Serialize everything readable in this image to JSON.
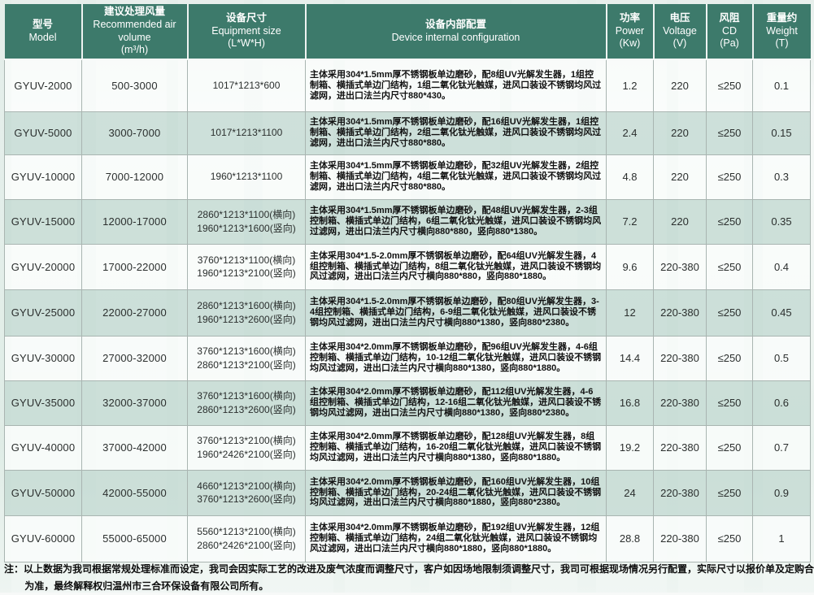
{
  "table": {
    "columns": [
      {
        "zh": "型号",
        "en": "Model",
        "unit": ""
      },
      {
        "zh": "建议处理风量",
        "en": "Recommended air volume",
        "unit": "(m³/h)"
      },
      {
        "zh": "设备尺寸",
        "en": "Equipment size",
        "unit": "(L*W*H)"
      },
      {
        "zh": "设备内部配置",
        "en": "Device internal configuration",
        "unit": ""
      },
      {
        "zh": "功率",
        "en": "Power",
        "unit": "(Kw)"
      },
      {
        "zh": "电压",
        "en": "Voltage",
        "unit": "(V)"
      },
      {
        "zh": "风阻",
        "en": "CD",
        "unit": "(Pa)"
      },
      {
        "zh": "重量约",
        "en": "Weight",
        "unit": "(T)"
      }
    ],
    "rows": [
      {
        "model": "GYUV-2000",
        "air_volume": "500-3000",
        "size": "1017*1213*600",
        "config": "主体采用304*1.5mm厚不锈钢板单边磨砂，配8组UV光解发生器，1组控制箱、横插式单边门结构，1组二氧化钛光触媒，进风口装设不锈钢均风过滤网，进出口法兰内尺寸880*430。",
        "power": "1.2",
        "voltage": "220",
        "cd": "≤250",
        "weight": "0.1"
      },
      {
        "model": "GYUV-5000",
        "air_volume": "3000-7000",
        "size": "1017*1213*1100",
        "config": "主体采用304*1.5mm厚不锈钢板单边磨砂，配16组UV光解发生器，1组控制箱、横插式单边门结构，2组二氧化钛光触媒，进风口装设不锈钢均风过滤网，进出口法兰内尺寸880*880。",
        "power": "2.4",
        "voltage": "220",
        "cd": "≤250",
        "weight": "0.15"
      },
      {
        "model": "GYUV-10000",
        "air_volume": "7000-12000",
        "size": "1960*1213*1100",
        "config": "主体采用304*1.5mm厚不锈钢板单边磨砂，配32组UV光解发生器，2组控制箱、横插式单边门结构，4组二氧化钛光触媒，进风口装设不锈钢均风过滤网，进出口法兰内尺寸880*880。",
        "power": "4.8",
        "voltage": "220",
        "cd": "≤250",
        "weight": "0.3"
      },
      {
        "model": "GYUV-15000",
        "air_volume": "12000-17000",
        "size": "2860*1213*1100(横向)\n1960*1213*1600(竖向)",
        "config": "主体采用304*1.5mm厚不锈钢板单边磨砂，配48组UV光解发生器，2-3组控制箱、横插式单边门结构，6组二氧化钛光触媒，进风口装设不锈钢均风过滤网，进出口法兰内尺寸横向880*880，竖向880*1380。",
        "power": "7.2",
        "voltage": "220",
        "cd": "≤250",
        "weight": "0.35"
      },
      {
        "model": "GYUV-20000",
        "air_volume": "17000-22000",
        "size": "3760*1213*1100(横向)\n1960*1213*2100(竖向)",
        "config": "主体采用304*1.5-2.0mm厚不锈钢板单边磨砂，配64组UV光解发生器，4组控制箱、横插式单边门结构，8组二氧化钛光触媒，进风口装设不锈钢均风过滤网，进出口法兰内尺寸横向880*880，竖向880*1880。",
        "power": "9.6",
        "voltage": "220-380",
        "cd": "≤250",
        "weight": "0.4"
      },
      {
        "model": "GYUV-25000",
        "air_volume": "22000-27000",
        "size": "2860*1213*1600(横向)\n1960*1213*2600(竖向)",
        "config": "主体采用304*1.5-2.0mm厚不锈钢板单边磨砂，配80组UV光解发生器，3-4组控制箱、横插式单边门结构，6-9组二氧化钛光触媒，进风口装设不锈钢均风过滤网，进出口法兰内尺寸横向880*1380，竖向880*2380。",
        "power": "12",
        "voltage": "220-380",
        "cd": "≤250",
        "weight": "0.45"
      },
      {
        "model": "GYUV-30000",
        "air_volume": "27000-32000",
        "size": "3760*1213*1600(横向)\n2860*1213*2100(竖向)",
        "config": "主体采用304*2.0mm厚不锈钢板单边磨砂，配96组UV光解发生器，4-6组控制箱、横插式单边门结构，10-12组二氧化钛光触媒，进风口装设不锈钢均风过滤网，进出口法兰内尺寸横向880*1380，竖向880*1880。",
        "power": "14.4",
        "voltage": "220-380",
        "cd": "≤250",
        "weight": "0.5"
      },
      {
        "model": "GYUV-35000",
        "air_volume": "32000-37000",
        "size": "3760*1213*1600(横向)\n2860*1213*2600(竖向)",
        "config": "主体采用304*2.0mm厚不锈钢板单边磨砂，配112组UV光解发生器，4-6组控制箱、横插式单边门结构，12-16组二氧化钛光触媒，进风口装设不锈钢均风过滤网，进出口法兰内尺寸横向880*1380，竖向880*2380。",
        "power": "16.8",
        "voltage": "220-380",
        "cd": "≤250",
        "weight": "0.6"
      },
      {
        "model": "GYUV-40000",
        "air_volume": "37000-42000",
        "size": "3760*1213*2100(横向)\n1960*2426*2100(竖向)",
        "config": "主体采用304*2.0mm厚不锈钢板单边磨砂，配128组UV光解发生器，8组控制箱、横插式单边门结构，16-20组二氧化钛光触媒，进风口装设不锈钢均风过滤网，进出口法兰内尺寸横向880*1380，竖向880*1880。",
        "power": "19.2",
        "voltage": "220-380",
        "cd": "≤250",
        "weight": "0.7"
      },
      {
        "model": "GYUV-50000",
        "air_volume": "42000-55000",
        "size": "4660*1213*2100(横向)\n3760*1213*2600(竖向)",
        "config": "主体采用304*2.0mm厚不锈钢板单边磨砂，配160组UV光解发生器，10组控制箱、横插式单边门结构，20-24组二氧化钛光触媒，进风口装设不锈钢均风过滤网，进出口法兰内尺寸横向880*1880，竖向880*2380。",
        "power": "24",
        "voltage": "220-380",
        "cd": "≤250",
        "weight": "0.9"
      },
      {
        "model": "GYUV-60000",
        "air_volume": "55000-65000",
        "size": "5560*1213*2100(横向)\n2860*2426*2100(竖向)",
        "config": "主体采用304*2.0mm厚不锈钢板单边磨砂，配192组UV光解发生器，12组控制箱、横插式单边门结构，24组二氧化钛光触媒，进风口装设不锈钢均风过滤网，进出口法兰内尺寸横向880*1880，竖向880*1880。",
        "power": "28.8",
        "voltage": "220-380",
        "cd": "≤250",
        "weight": "1"
      }
    ]
  },
  "footnote": "注：以上数据为我司根据常规处理标准而设定，我司会因实际工艺的改进及废气浓度而调整尺寸，客户如因场地限制须调整尺寸，我司可根据现场情况另行配置，实际尺寸以报价单及定购合同为准，最终解释权归温州市三合环保设备有限公司所有。",
  "colors": {
    "header_bg": "#3d7a6b",
    "header_text": "#ffffff",
    "row_alt_bg": "#c5dbd3",
    "row_bg": "#fafcfb",
    "border": "#a9b5b1"
  }
}
